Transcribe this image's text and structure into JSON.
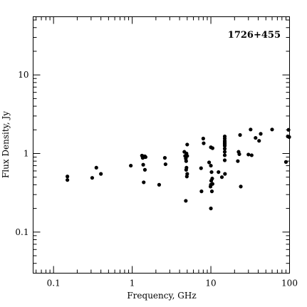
{
  "chart_data": {
    "type": "scatter",
    "title": "1726+455",
    "xlabel": "Frequency, GHz",
    "ylabel": "Flux Density, Jy",
    "x_scale": "log",
    "y_scale": "log",
    "xlim": [
      0.055,
      100
    ],
    "ylim": [
      0.03,
      55
    ],
    "x_ticks": [
      {
        "value": 0.1,
        "label": "0.1"
      },
      {
        "value": 1,
        "label": "1"
      },
      {
        "value": 10,
        "label": "10"
      },
      {
        "value": 100,
        "label": "100"
      }
    ],
    "y_ticks": [
      {
        "value": 0.1,
        "label": "0.1"
      },
      {
        "value": 1,
        "label": "1"
      },
      {
        "value": 10,
        "label": "10"
      }
    ],
    "grid": false,
    "marker_color": "#000000",
    "points": [
      [
        0.15,
        0.51
      ],
      [
        0.15,
        0.46
      ],
      [
        0.31,
        0.49
      ],
      [
        0.35,
        0.66
      ],
      [
        0.4,
        0.55
      ],
      [
        0.96,
        0.7
      ],
      [
        1.33,
        0.94
      ],
      [
        1.36,
        0.88
      ],
      [
        1.4,
        0.92
      ],
      [
        1.43,
        0.9
      ],
      [
        1.45,
        0.92
      ],
      [
        1.48,
        0.9
      ],
      [
        1.38,
        0.72
      ],
      [
        1.45,
        0.62
      ],
      [
        1.4,
        0.43
      ],
      [
        2.2,
        0.4
      ],
      [
        2.6,
        0.88
      ],
      [
        2.65,
        0.73
      ],
      [
        4.6,
        1.05
      ],
      [
        4.7,
        0.93
      ],
      [
        4.8,
        0.86
      ],
      [
        4.85,
        0.8
      ],
      [
        4.9,
        1.0
      ],
      [
        5.0,
        0.93
      ],
      [
        5.0,
        1.3
      ],
      [
        4.9,
        0.66
      ],
      [
        4.85,
        0.62
      ],
      [
        5.0,
        0.55
      ],
      [
        4.95,
        0.51
      ],
      [
        4.8,
        0.25
      ],
      [
        7.5,
        0.65
      ],
      [
        7.6,
        0.33
      ],
      [
        8.0,
        1.55
      ],
      [
        8.1,
        1.35
      ],
      [
        9.5,
        0.77
      ],
      [
        10.0,
        1.2
      ],
      [
        10.5,
        1.17
      ],
      [
        10.0,
        0.7
      ],
      [
        10.2,
        0.58
      ],
      [
        10.4,
        0.48
      ],
      [
        10.1,
        0.45
      ],
      [
        10.5,
        0.41
      ],
      [
        9.9,
        0.38
      ],
      [
        10.0,
        0.4
      ],
      [
        10.3,
        0.33
      ],
      [
        10.0,
        0.2
      ],
      [
        12.5,
        0.58
      ],
      [
        13.8,
        0.5
      ],
      [
        15.0,
        1.05
      ],
      [
        15.0,
        1.15
      ],
      [
        15.0,
        1.25
      ],
      [
        15.0,
        1.35
      ],
      [
        15.0,
        1.45
      ],
      [
        15.0,
        1.55
      ],
      [
        15.0,
        1.65
      ],
      [
        15.0,
        1.4
      ],
      [
        15.0,
        1.3
      ],
      [
        15.0,
        0.95
      ],
      [
        15.0,
        0.82
      ],
      [
        15.1,
        0.55
      ],
      [
        22.0,
        0.8
      ],
      [
        22.5,
        1.05
      ],
      [
        23.0,
        0.98
      ],
      [
        23.5,
        1.72
      ],
      [
        24.0,
        0.38
      ],
      [
        30.0,
        0.97
      ],
      [
        32.0,
        2.02
      ],
      [
        33.0,
        0.95
      ],
      [
        37.0,
        1.58
      ],
      [
        41.0,
        1.45
      ],
      [
        43.0,
        1.78
      ],
      [
        60.0,
        2.02
      ],
      [
        90.0,
        0.78
      ],
      [
        95.0,
        1.65
      ],
      [
        97.0,
        2.0
      ],
      [
        99.0,
        1.62
      ]
    ]
  }
}
